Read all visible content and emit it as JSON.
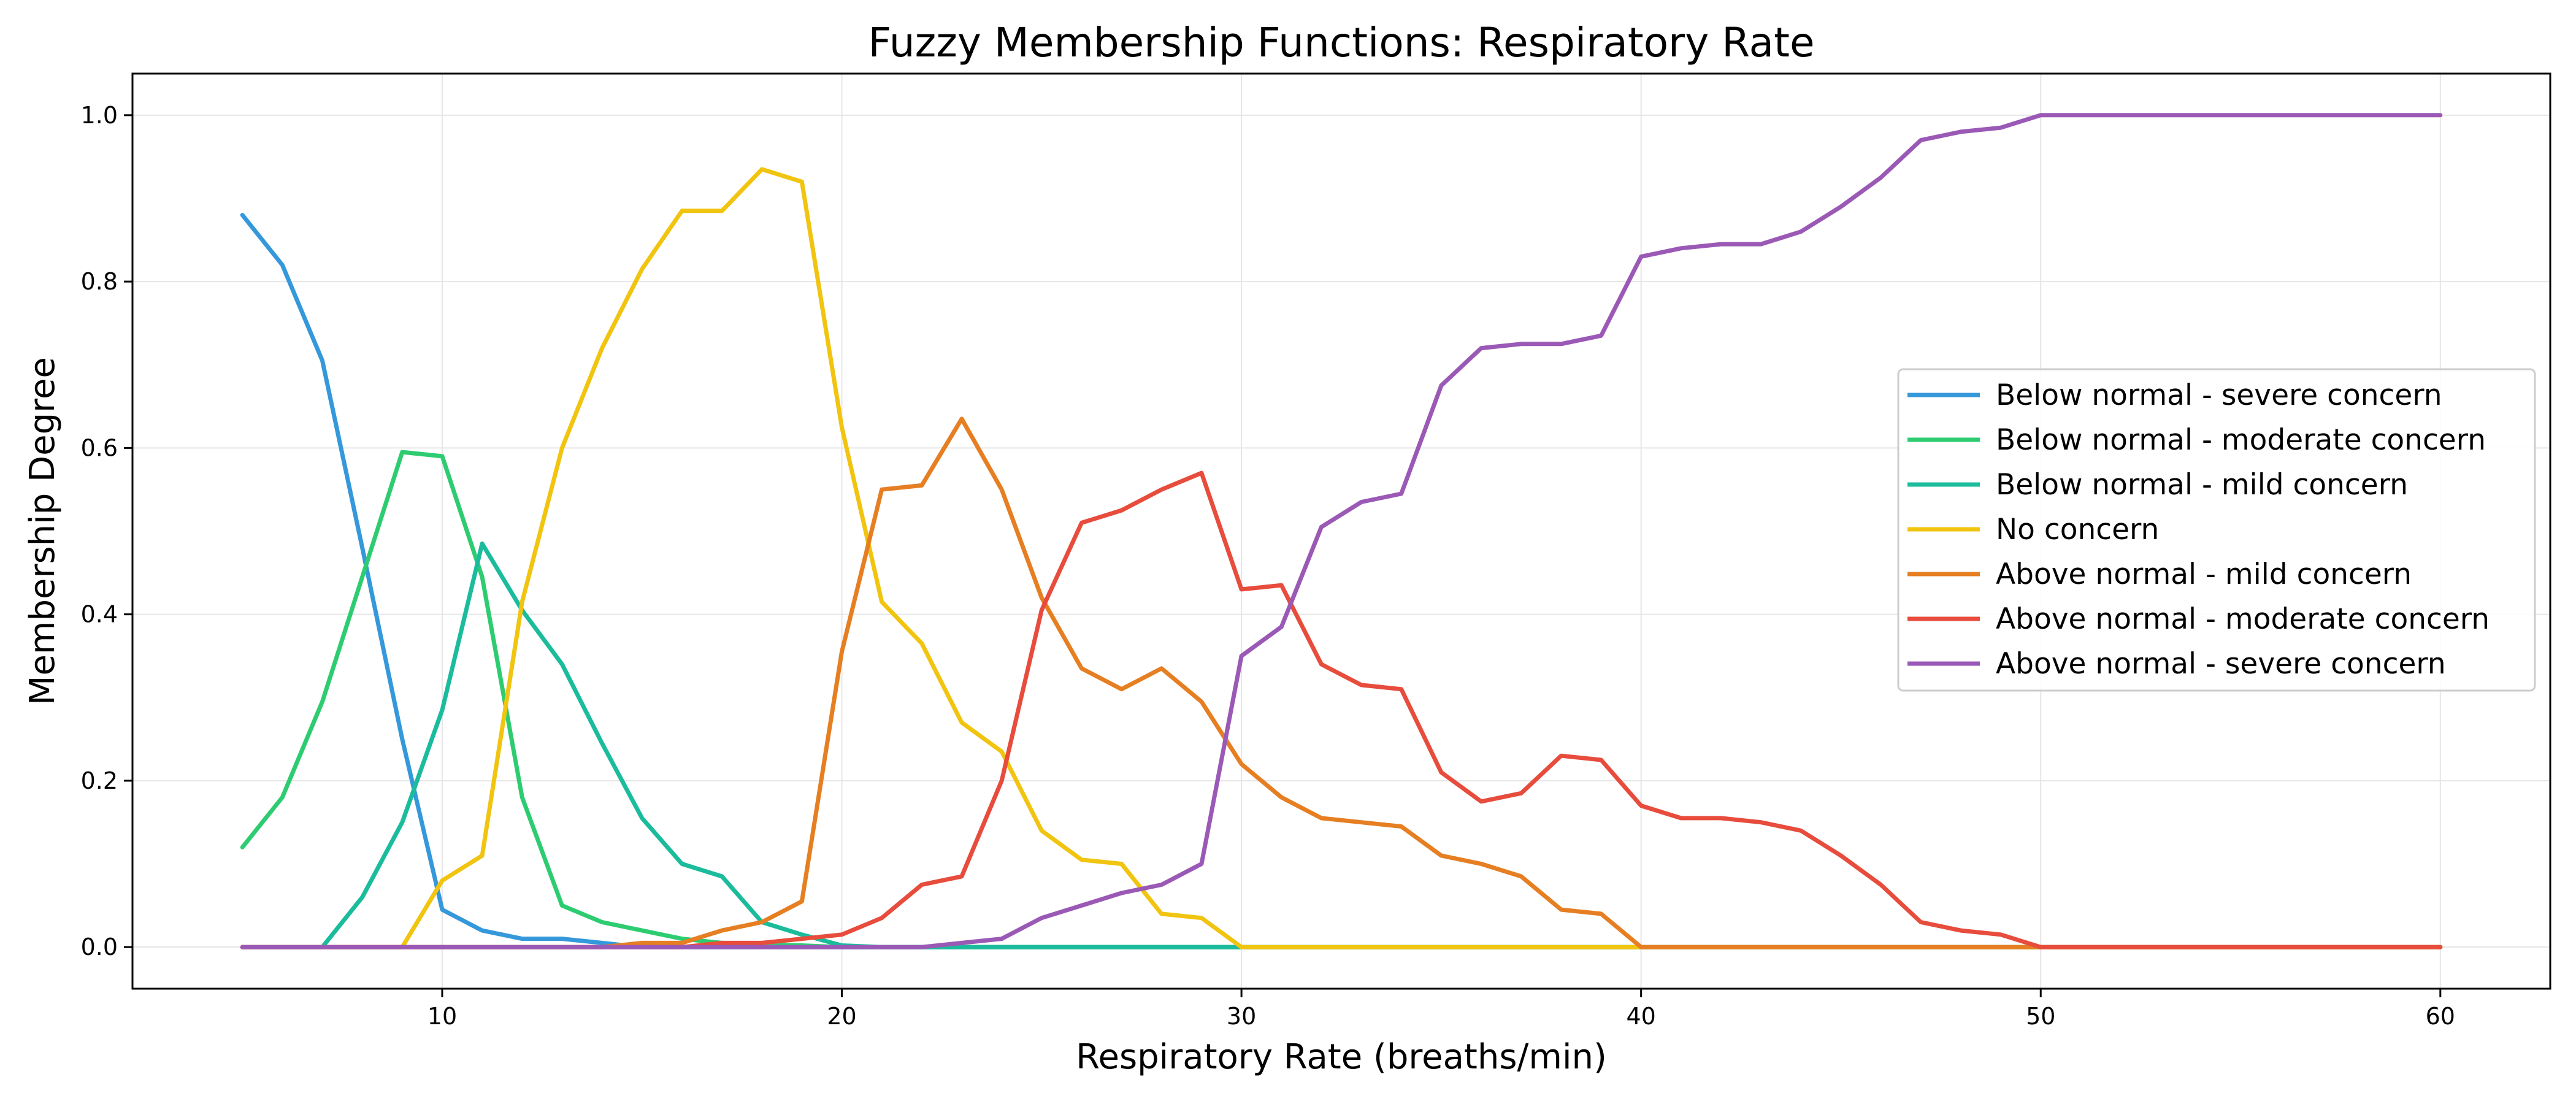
{
  "chart_data": {
    "type": "line",
    "title": "Fuzzy Membership Functions: Respiratory Rate",
    "xlabel": "Respiratory Rate (breaths/min)",
    "ylabel": "Membership Degree",
    "xlim": [
      2.25,
      62.75
    ],
    "ylim": [
      -0.05,
      1.05
    ],
    "xticks": [
      10,
      20,
      30,
      40,
      50,
      60
    ],
    "yticks": [
      0.0,
      0.2,
      0.4,
      0.6,
      0.8,
      1.0
    ],
    "xtick_labels": [
      "10",
      "20",
      "30",
      "40",
      "50",
      "60"
    ],
    "ytick_labels": [
      "0.0",
      "0.2",
      "0.4",
      "0.6",
      "0.8",
      "1.0"
    ],
    "grid": true,
    "legend_position": "center-right",
    "x": [
      5,
      6,
      7,
      8,
      9,
      10,
      11,
      12,
      13,
      14,
      15,
      16,
      17,
      18,
      19,
      20,
      21,
      22,
      23,
      24,
      25,
      26,
      27,
      28,
      29,
      30,
      31,
      32,
      33,
      34,
      35,
      36,
      37,
      38,
      39,
      40,
      41,
      42,
      43,
      44,
      45,
      46,
      47,
      48,
      49,
      50,
      51,
      52,
      53,
      54,
      55,
      56,
      57,
      58,
      59,
      60
    ],
    "series": [
      {
        "name": "Below normal - severe concern",
        "color": "#3498db",
        "values": [
          0.88,
          0.82,
          0.705,
          0.48,
          0.25,
          0.045,
          0.02,
          0.01,
          0.01,
          0.005,
          0,
          0,
          0,
          0,
          0,
          0,
          0,
          0,
          0,
          0,
          0,
          0,
          0,
          0,
          0,
          0,
          0,
          0,
          0,
          0,
          0,
          0,
          0,
          0,
          0,
          0,
          0,
          0,
          0,
          0,
          0,
          0,
          0,
          0,
          0,
          0,
          0,
          0,
          0,
          0,
          0,
          0,
          0,
          0,
          0,
          0
        ]
      },
      {
        "name": "Below normal - moderate concern",
        "color": "#2ecc71",
        "values": [
          0.12,
          0.18,
          0.295,
          0.445,
          0.595,
          0.59,
          0.445,
          0.18,
          0.05,
          0.03,
          0.02,
          0.01,
          0.005,
          0.003,
          0.002,
          0,
          0,
          0,
          0,
          0,
          0,
          0,
          0,
          0,
          0,
          0,
          0,
          0,
          0,
          0,
          0,
          0,
          0,
          0,
          0,
          0,
          0,
          0,
          0,
          0,
          0,
          0,
          0,
          0,
          0,
          0,
          0,
          0,
          0,
          0,
          0,
          0,
          0,
          0,
          0,
          0
        ]
      },
      {
        "name": "Below normal - mild concern",
        "color": "#1abc9c",
        "values": [
          0,
          0,
          0,
          0.06,
          0.15,
          0.285,
          0.485,
          0.405,
          0.34,
          0.245,
          0.155,
          0.1,
          0.085,
          0.03,
          0.015,
          0.002,
          0,
          0,
          0,
          0,
          0,
          0,
          0,
          0,
          0,
          0,
          0,
          0,
          0,
          0,
          0,
          0,
          0,
          0,
          0,
          0,
          0,
          0,
          0,
          0,
          0,
          0,
          0,
          0,
          0,
          0,
          0,
          0,
          0,
          0,
          0,
          0,
          0,
          0,
          0,
          0
        ]
      },
      {
        "name": "No concern",
        "color": "#f1c40f",
        "values": [
          0,
          0,
          0,
          0,
          0,
          0.08,
          0.11,
          0.415,
          0.6,
          0.72,
          0.815,
          0.885,
          0.885,
          0.935,
          0.92,
          0.625,
          0.415,
          0.365,
          0.27,
          0.235,
          0.14,
          0.105,
          0.1,
          0.04,
          0.035,
          0,
          0,
          0,
          0,
          0,
          0,
          0,
          0,
          0,
          0,
          0,
          0,
          0,
          0,
          0,
          0,
          0,
          0,
          0,
          0,
          0,
          0,
          0,
          0,
          0,
          0,
          0,
          0,
          0,
          0,
          0
        ]
      },
      {
        "name": "Above normal - mild concern",
        "color": "#e67e22",
        "values": [
          0,
          0,
          0,
          0,
          0,
          0,
          0,
          0,
          0,
          0,
          0.005,
          0.005,
          0.02,
          0.03,
          0.055,
          0.355,
          0.55,
          0.555,
          0.635,
          0.55,
          0.42,
          0.335,
          0.31,
          0.335,
          0.295,
          0.22,
          0.18,
          0.155,
          0.15,
          0.145,
          0.11,
          0.1,
          0.085,
          0.045,
          0.04,
          0,
          0,
          0,
          0,
          0,
          0,
          0,
          0,
          0,
          0,
          0,
          0,
          0,
          0,
          0,
          0,
          0,
          0,
          0,
          0,
          0
        ]
      },
      {
        "name": "Above normal - moderate concern",
        "color": "#e74c3c",
        "values": [
          0,
          0,
          0,
          0,
          0,
          0,
          0,
          0,
          0,
          0,
          0,
          0,
          0.005,
          0.005,
          0.01,
          0.015,
          0.035,
          0.075,
          0.085,
          0.2,
          0.405,
          0.51,
          0.525,
          0.55,
          0.57,
          0.43,
          0.435,
          0.34,
          0.315,
          0.31,
          0.21,
          0.175,
          0.185,
          0.23,
          0.225,
          0.17,
          0.155,
          0.155,
          0.15,
          0.14,
          0.11,
          0.075,
          0.03,
          0.02,
          0.015,
          0,
          0,
          0,
          0,
          0,
          0,
          0,
          0,
          0,
          0,
          0
        ]
      },
      {
        "name": "Above normal - severe concern",
        "color": "#9b59b6",
        "values": [
          0,
          0,
          0,
          0,
          0,
          0,
          0,
          0,
          0,
          0,
          0,
          0,
          0,
          0,
          0,
          0,
          0,
          0,
          0.005,
          0.01,
          0.035,
          0.05,
          0.065,
          0.075,
          0.1,
          0.35,
          0.385,
          0.505,
          0.535,
          0.545,
          0.675,
          0.72,
          0.725,
          0.725,
          0.735,
          0.83,
          0.84,
          0.845,
          0.845,
          0.86,
          0.89,
          0.925,
          0.97,
          0.98,
          0.985,
          1,
          1,
          1,
          1,
          1,
          1,
          1,
          1,
          1,
          1,
          1
        ]
      }
    ]
  }
}
